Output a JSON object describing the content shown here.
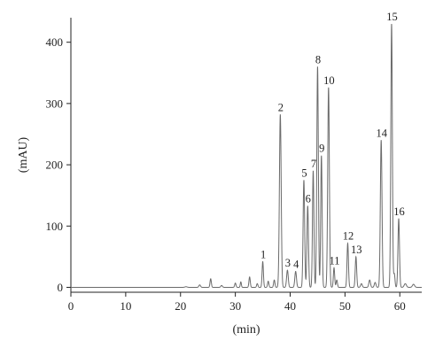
{
  "chart_data": {
    "type": "line",
    "xlabel": "(min)",
    "ylabel": "(mAU)",
    "xlim": [
      0,
      64
    ],
    "ylim": [
      -8,
      440
    ],
    "xticks": [
      0,
      10,
      20,
      30,
      40,
      50,
      60
    ],
    "yticks": [
      0,
      100,
      200,
      300,
      400
    ],
    "grid": false,
    "legend": "none",
    "line_color": "#6b6b6b",
    "baseline": 0,
    "minor_peaks": [
      {
        "x": 21.0,
        "y": 1,
        "w": 0.2
      },
      {
        "x": 23.5,
        "y": 4,
        "w": 0.15
      },
      {
        "x": 25.5,
        "y": 14,
        "w": 0.12
      },
      {
        "x": 27.5,
        "y": 3,
        "w": 0.15
      },
      {
        "x": 30.0,
        "y": 7,
        "w": 0.12
      },
      {
        "x": 31.0,
        "y": 9,
        "w": 0.1
      },
      {
        "x": 32.6,
        "y": 17,
        "w": 0.12
      },
      {
        "x": 34.0,
        "y": 6,
        "w": 0.12
      },
      {
        "x": 36.0,
        "y": 10,
        "w": 0.12
      },
      {
        "x": 37.1,
        "y": 12,
        "w": 0.12
      },
      {
        "x": 48.5,
        "y": 12,
        "w": 0.12
      },
      {
        "x": 53.0,
        "y": 6,
        "w": 0.15
      },
      {
        "x": 54.5,
        "y": 12,
        "w": 0.15
      },
      {
        "x": 55.5,
        "y": 8,
        "w": 0.15
      },
      {
        "x": 59.0,
        "y": 22,
        "w": 0.12
      },
      {
        "x": 61.0,
        "y": 6,
        "w": 0.2
      },
      {
        "x": 62.5,
        "y": 5,
        "w": 0.2
      }
    ],
    "peaks": [
      {
        "label": "1",
        "x": 35.0,
        "y": 42,
        "w": 0.12
      },
      {
        "label": "2",
        "x": 38.2,
        "y": 282,
        "w": 0.16
      },
      {
        "label": "3",
        "x": 39.5,
        "y": 28,
        "w": 0.15
      },
      {
        "label": "4",
        "x": 41.0,
        "y": 26,
        "w": 0.15
      },
      {
        "label": "5",
        "x": 42.5,
        "y": 175,
        "w": 0.14
      },
      {
        "label": "6",
        "x": 43.2,
        "y": 133,
        "w": 0.14
      },
      {
        "label": "7",
        "x": 44.2,
        "y": 190,
        "w": 0.13
      },
      {
        "label": "8",
        "x": 45.0,
        "y": 360,
        "w": 0.14
      },
      {
        "label": "9",
        "x": 45.7,
        "y": 215,
        "w": 0.13
      },
      {
        "label": "10",
        "x": 47.0,
        "y": 326,
        "w": 0.15
      },
      {
        "label": "11",
        "x": 48.0,
        "y": 32,
        "w": 0.12
      },
      {
        "label": "12",
        "x": 50.5,
        "y": 72,
        "w": 0.13
      },
      {
        "label": "13",
        "x": 52.0,
        "y": 50,
        "w": 0.13
      },
      {
        "label": "14",
        "x": 56.6,
        "y": 240,
        "w": 0.15
      },
      {
        "label": "15",
        "x": 58.5,
        "y": 430,
        "w": 0.14
      },
      {
        "label": "16",
        "x": 59.8,
        "y": 112,
        "w": 0.14
      }
    ]
  }
}
